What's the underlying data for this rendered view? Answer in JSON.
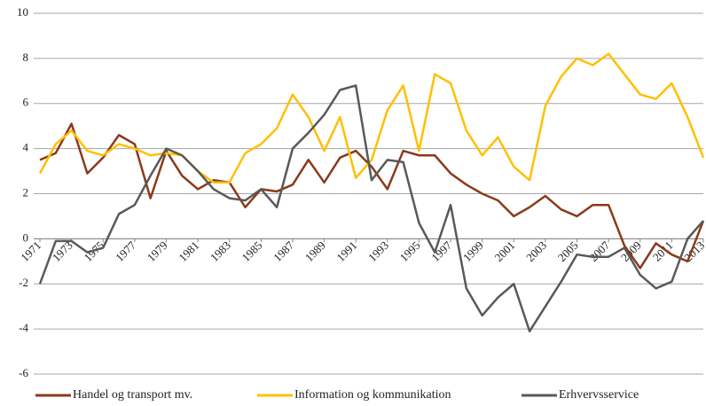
{
  "chart_data": {
    "type": "line",
    "x": [
      1971,
      1972,
      1973,
      1974,
      1975,
      1976,
      1977,
      1978,
      1979,
      1980,
      1981,
      1982,
      1983,
      1984,
      1985,
      1986,
      1987,
      1988,
      1989,
      1990,
      1991,
      1992,
      1993,
      1994,
      1995,
      1996,
      1997,
      1998,
      1999,
      2000,
      2001,
      2002,
      2003,
      2004,
      2005,
      2006,
      2007,
      2008,
      2009,
      2010,
      2011,
      2012,
      2013
    ],
    "xlim": [
      1971,
      2013
    ],
    "xticks": [
      1971,
      1973,
      1975,
      1977,
      1979,
      1981,
      1983,
      1985,
      1987,
      1989,
      1991,
      1993,
      1995,
      1997,
      1999,
      2001,
      2003,
      2005,
      2007,
      2009,
      2011,
      2013
    ],
    "ylim": [
      -6,
      10
    ],
    "yticks": [
      -6,
      -4,
      -2,
      0,
      2,
      4,
      6,
      8,
      10
    ],
    "grid": true,
    "legend": "bottom",
    "series": [
      {
        "name": "Handel og transport mv.",
        "color": "#8b3a1a",
        "values": [
          3.5,
          3.8,
          5.1,
          2.9,
          3.6,
          4.6,
          4.2,
          1.8,
          3.9,
          2.8,
          2.2,
          2.6,
          2.5,
          1.4,
          2.2,
          2.1,
          2.4,
          3.5,
          2.5,
          3.6,
          3.9,
          3.2,
          2.2,
          3.9,
          3.7,
          3.7,
          2.9,
          2.4,
          2.0,
          1.7,
          1.0,
          1.4,
          1.9,
          1.3,
          1.0,
          1.5,
          1.5,
          -0.3,
          -1.3,
          -0.2,
          -0.7,
          -1.0,
          0.8
        ]
      },
      {
        "name": "Information og kommunikation",
        "color": "#ffc000",
        "values": [
          2.9,
          4.2,
          4.8,
          3.9,
          3.7,
          4.2,
          4.0,
          3.7,
          3.8,
          3.7,
          3.0,
          2.5,
          2.5,
          3.8,
          4.2,
          4.9,
          6.4,
          5.4,
          3.9,
          5.4,
          2.7,
          3.5,
          5.7,
          6.8,
          3.9,
          7.3,
          6.9,
          4.8,
          3.7,
          4.5,
          3.2,
          2.6,
          5.9,
          7.2,
          8.0,
          7.7,
          8.2,
          7.3,
          6.4,
          6.2,
          6.9,
          5.4,
          3.6
        ]
      },
      {
        "name": "Erhvervsservice",
        "color": "#595959",
        "values": [
          -2.0,
          -0.1,
          -0.1,
          -0.6,
          -0.4,
          1.1,
          1.5,
          2.8,
          4.0,
          3.7,
          3.0,
          2.2,
          1.8,
          1.7,
          2.2,
          1.4,
          4.0,
          4.7,
          5.5,
          6.6,
          6.8,
          2.6,
          3.5,
          3.4,
          0.7,
          -0.6,
          1.5,
          -2.2,
          -3.4,
          -2.6,
          -2.0,
          -4.1,
          -3.0,
          -1.9,
          -0.7,
          -0.8,
          -0.8,
          -0.4,
          -1.6,
          -2.2,
          -1.9,
          0.0,
          0.8
        ]
      }
    ]
  }
}
